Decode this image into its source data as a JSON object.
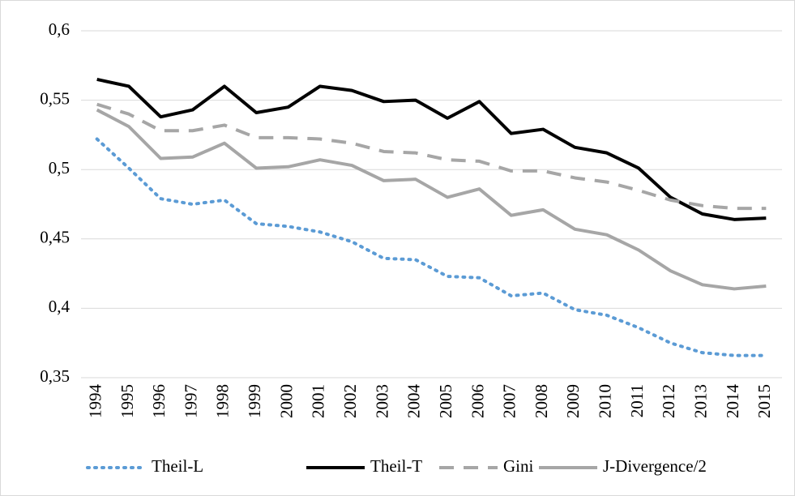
{
  "chart_data": {
    "type": "line",
    "categories": [
      "1994",
      "1995",
      "1996",
      "1997",
      "1998",
      "1999",
      "2000",
      "2001",
      "2002",
      "2003",
      "2004",
      "2005",
      "2006",
      "2007",
      "2008",
      "2009",
      "2010",
      "2011",
      "2012",
      "2013",
      "2014",
      "2015"
    ],
    "series": [
      {
        "name": "Theil-L",
        "color": "#5b9bd5",
        "dash": "dotted",
        "values": [
          0.522,
          0.501,
          0.479,
          0.475,
          0.478,
          0.461,
          0.459,
          0.455,
          0.448,
          0.436,
          0.435,
          0.423,
          0.422,
          0.409,
          0.411,
          0.399,
          0.395,
          0.386,
          0.375,
          0.368,
          0.366,
          0.366
        ]
      },
      {
        "name": "Theil-T",
        "color": "#000000",
        "dash": "solid",
        "values": [
          0.565,
          0.56,
          0.538,
          0.543,
          0.56,
          0.541,
          0.545,
          0.56,
          0.557,
          0.549,
          0.55,
          0.537,
          0.549,
          0.526,
          0.529,
          0.516,
          0.512,
          0.501,
          0.48,
          0.468,
          0.464,
          0.465
        ]
      },
      {
        "name": "Gini",
        "color": "#a6a6a6",
        "dash": "dashed",
        "values": [
          0.547,
          0.54,
          0.528,
          0.528,
          0.532,
          0.523,
          0.523,
          0.522,
          0.519,
          0.513,
          0.512,
          0.507,
          0.506,
          0.499,
          0.499,
          0.494,
          0.491,
          0.485,
          0.478,
          0.474,
          0.472,
          0.472
        ]
      },
      {
        "name": "J-Divergence/2",
        "color": "#a6a6a6",
        "dash": "solid",
        "values": [
          0.543,
          0.531,
          0.508,
          0.509,
          0.519,
          0.501,
          0.502,
          0.507,
          0.503,
          0.492,
          0.493,
          0.48,
          0.486,
          0.467,
          0.471,
          0.457,
          0.453,
          0.442,
          0.427,
          0.417,
          0.414,
          0.416
        ]
      }
    ],
    "ylim": [
      0.35,
      0.6
    ],
    "yticks": [
      {
        "value": 0.35,
        "label": "0,35"
      },
      {
        "value": 0.4,
        "label": "0,4"
      },
      {
        "value": 0.45,
        "label": "0,45"
      },
      {
        "value": 0.5,
        "label": "0,5"
      },
      {
        "value": 0.55,
        "label": "0,55"
      },
      {
        "value": 0.6,
        "label": "0,6"
      }
    ],
    "grid": true,
    "legend": "bottom"
  }
}
